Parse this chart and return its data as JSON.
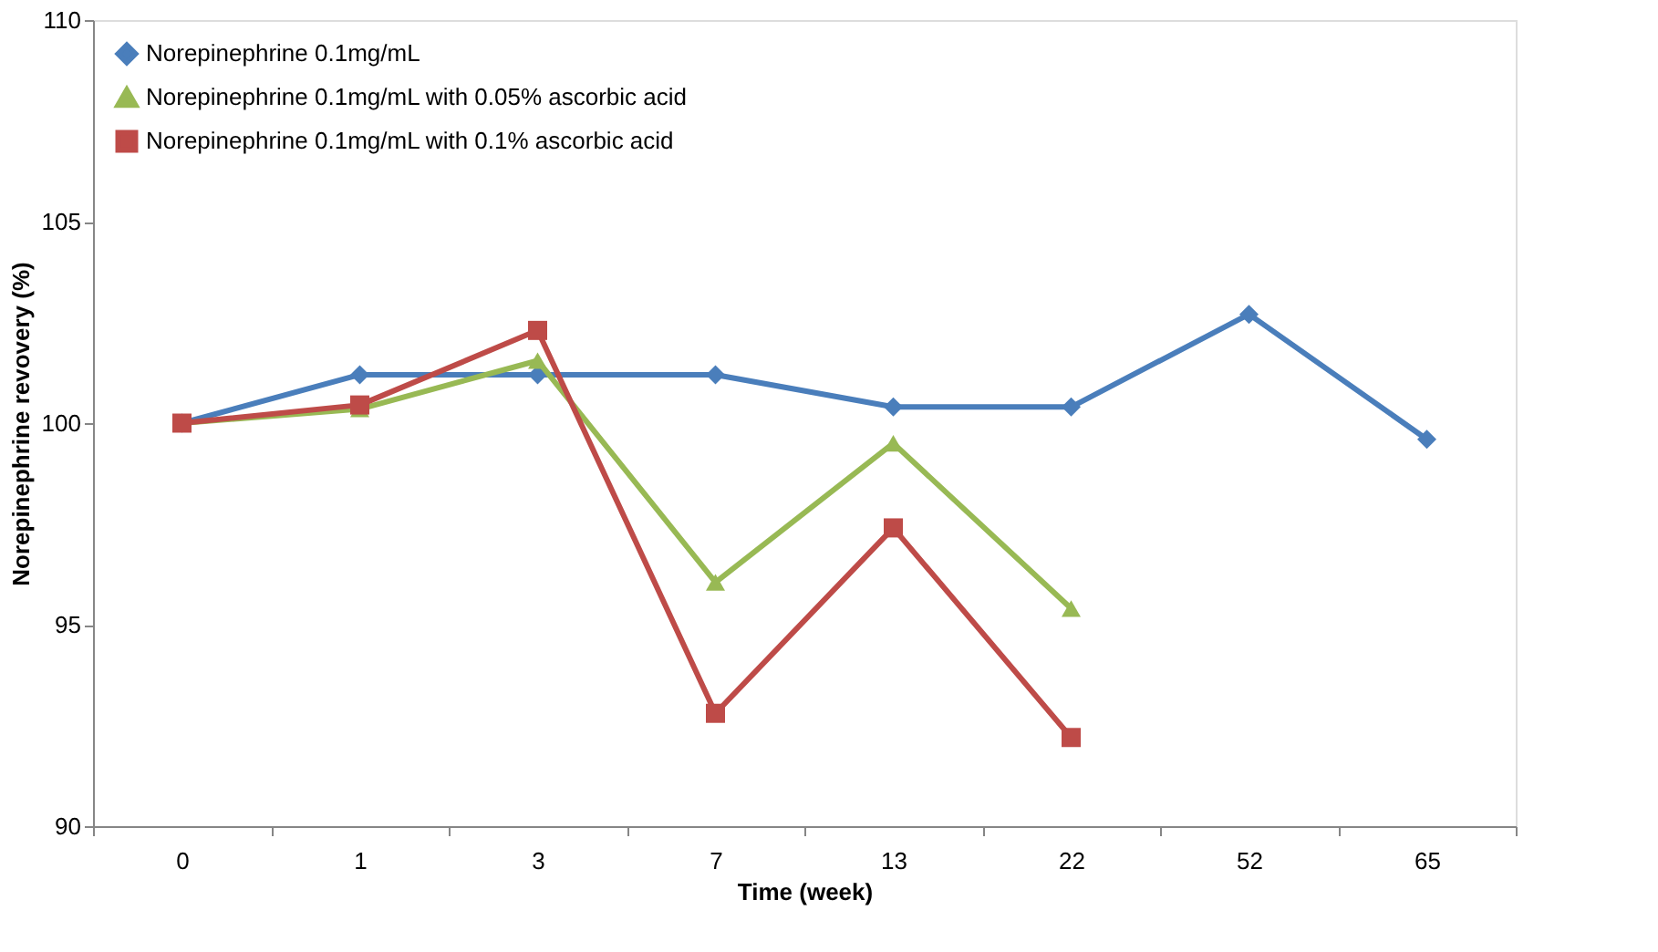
{
  "chart_data": {
    "type": "line",
    "xlabel": "Time (week)",
    "ylabel": "Norepinephrine revovery (%)",
    "categories": [
      "0",
      "1",
      "3",
      "7",
      "13",
      "22",
      "52",
      "65"
    ],
    "series": [
      {
        "name": "Norepinephrine 0.1mg/mL",
        "color": "#4a7ebb",
        "marker": "diamond",
        "values": [
          100,
          101.2,
          101.2,
          101.2,
          100.4,
          100.4,
          102.7,
          99.6
        ]
      },
      {
        "name": "Norepinephrine 0.1mg/mL with 0.05% ascorbic acid",
        "color": "#98b954",
        "marker": "triangle",
        "values": [
          100,
          100.35,
          101.55,
          96.05,
          99.5,
          95.4,
          null,
          null
        ]
      },
      {
        "name": "Norepinephrine 0.1mg/mL with 0.1% ascorbic acid",
        "color": "#be4b48",
        "marker": "square",
        "values": [
          100,
          100.45,
          102.3,
          92.8,
          97.4,
          92.2,
          null,
          null
        ]
      }
    ],
    "ylim": [
      90,
      110
    ],
    "yticks": [
      90,
      95,
      100,
      105,
      110
    ],
    "grid": false,
    "legend": "top left",
    "line_style": "solid"
  }
}
